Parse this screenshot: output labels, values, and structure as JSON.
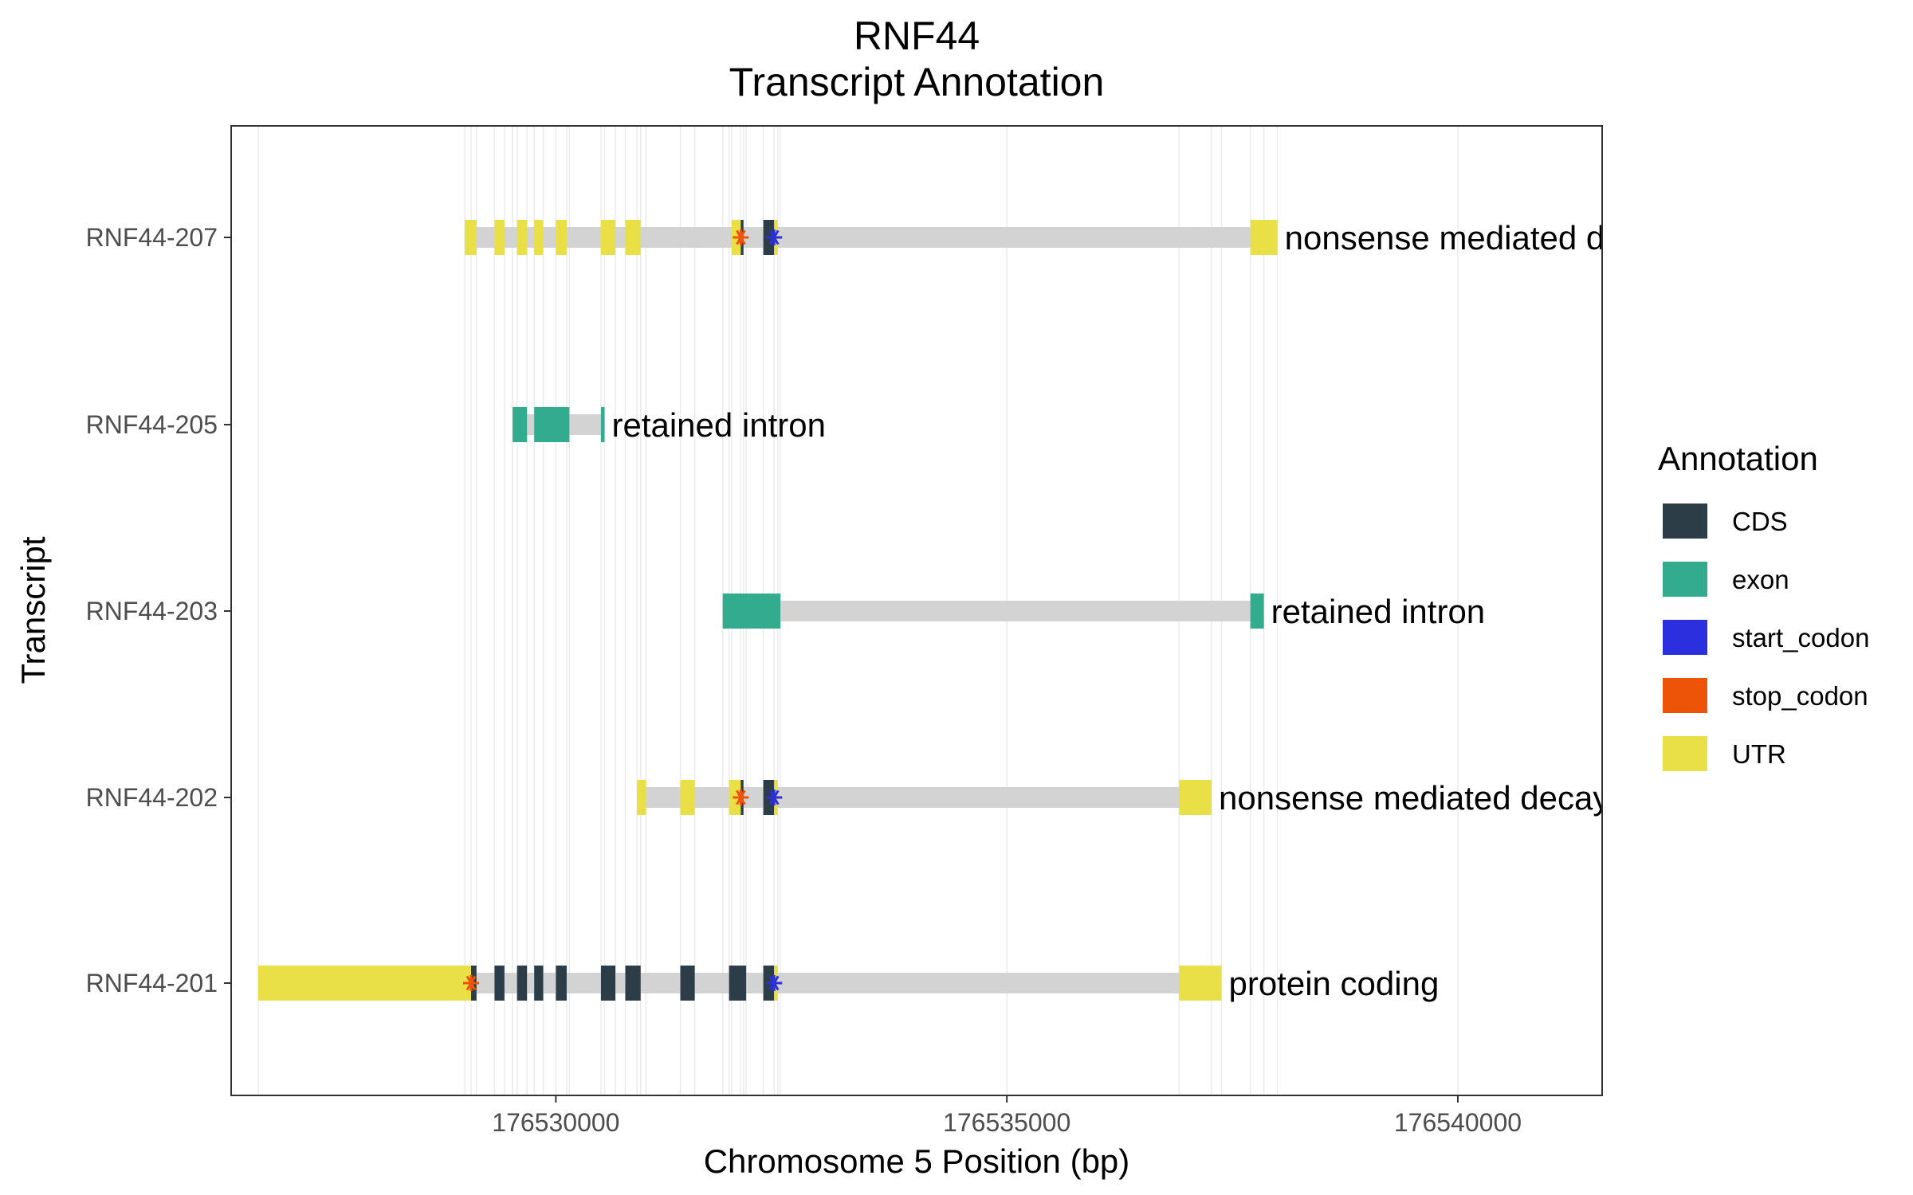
{
  "chart_data": {
    "type": "gene-structure",
    "title": "RNF44",
    "subtitle": "Transcript Annotation",
    "xlabel": "Chromosome 5 Position (bp)",
    "ylabel": "Transcript",
    "xlim": [
      176526400,
      176541600
    ],
    "x_ticks": [
      176530000,
      176535000,
      176540000
    ],
    "x_tick_labels": [
      "176530000",
      "176535000",
      "176540000"
    ],
    "grid": true,
    "legend": {
      "title": "Annotation",
      "position": "right",
      "entries": [
        {
          "label": "CDS",
          "color": "#2d3d48"
        },
        {
          "label": "exon",
          "color": "#33ab8f"
        },
        {
          "label": "start_codon",
          "color": "#2b2fdd"
        },
        {
          "label": "stop_codon",
          "color": "#ee5408"
        },
        {
          "label": "UTR",
          "color": "#e8e046"
        }
      ]
    },
    "colors": {
      "CDS": "#2d3d48",
      "exon": "#33ab8f",
      "UTR": "#e8e046",
      "start_codon": "#2b2fdd",
      "stop_codon": "#ee5408",
      "intron": "#d3d3d3",
      "grid": "#ebebeb"
    },
    "transcripts": [
      {
        "name": "RNF44-207",
        "biotype": "nonsense mediated decay",
        "start": 176528990,
        "end": 176538000,
        "features": [
          {
            "type": "UTR",
            "start": 176528990,
            "end": 176529120
          },
          {
            "type": "UTR",
            "start": 176529320,
            "end": 176529430
          },
          {
            "type": "UTR",
            "start": 176529570,
            "end": 176529680
          },
          {
            "type": "UTR",
            "start": 176529760,
            "end": 176529860
          },
          {
            "type": "UTR",
            "start": 176530000,
            "end": 176530120
          },
          {
            "type": "UTR",
            "start": 176530500,
            "end": 176530660
          },
          {
            "type": "UTR",
            "start": 176530770,
            "end": 176530940
          },
          {
            "type": "UTR",
            "start": 176531950,
            "end": 176532050
          },
          {
            "type": "CDS",
            "start": 176532050,
            "end": 176532080
          },
          {
            "type": "CDS",
            "start": 176532300,
            "end": 176532420
          },
          {
            "type": "UTR",
            "start": 176532420,
            "end": 176532460
          },
          {
            "type": "UTR",
            "start": 176537700,
            "end": 176538000
          }
        ],
        "stop_codon": 176532050,
        "start_codon": 176532420
      },
      {
        "name": "RNF44-205",
        "biotype": "retained intron",
        "start": 176529520,
        "end": 176530540,
        "features": [
          {
            "type": "exon",
            "start": 176529520,
            "end": 176529680
          },
          {
            "type": "exon",
            "start": 176529760,
            "end": 176530150
          },
          {
            "type": "exon",
            "start": 176530500,
            "end": 176530540
          }
        ]
      },
      {
        "name": "RNF44-203",
        "biotype": "retained intron",
        "start": 176531850,
        "end": 176537850,
        "features": [
          {
            "type": "exon",
            "start": 176531850,
            "end": 176532490
          },
          {
            "type": "exon",
            "start": 176537700,
            "end": 176537850
          }
        ]
      },
      {
        "name": "RNF44-202",
        "biotype": "nonsense mediated decay",
        "start": 176530900,
        "end": 176537270,
        "features": [
          {
            "type": "UTR",
            "start": 176530900,
            "end": 176531000
          },
          {
            "type": "UTR",
            "start": 176531380,
            "end": 176531540
          },
          {
            "type": "UTR",
            "start": 176531920,
            "end": 176532050
          },
          {
            "type": "CDS",
            "start": 176532050,
            "end": 176532080
          },
          {
            "type": "CDS",
            "start": 176532300,
            "end": 176532420
          },
          {
            "type": "UTR",
            "start": 176532420,
            "end": 176532460
          },
          {
            "type": "UTR",
            "start": 176536910,
            "end": 176537270
          }
        ],
        "stop_codon": 176532050,
        "start_codon": 176532420
      },
      {
        "name": "RNF44-201",
        "biotype": "protein coding",
        "start": 176526700,
        "end": 176537380,
        "features": [
          {
            "type": "UTR",
            "start": 176526700,
            "end": 176529060
          },
          {
            "type": "CDS",
            "start": 176529060,
            "end": 176529120
          },
          {
            "type": "CDS",
            "start": 176529320,
            "end": 176529430
          },
          {
            "type": "CDS",
            "start": 176529570,
            "end": 176529680
          },
          {
            "type": "CDS",
            "start": 176529760,
            "end": 176529860
          },
          {
            "type": "CDS",
            "start": 176530000,
            "end": 176530120
          },
          {
            "type": "CDS",
            "start": 176530500,
            "end": 176530660
          },
          {
            "type": "CDS",
            "start": 176530770,
            "end": 176530940
          },
          {
            "type": "CDS",
            "start": 176531380,
            "end": 176531540
          },
          {
            "type": "CDS",
            "start": 176531920,
            "end": 176532110
          },
          {
            "type": "CDS",
            "start": 176532300,
            "end": 176532420
          },
          {
            "type": "UTR",
            "start": 176532420,
            "end": 176532460
          },
          {
            "type": "UTR",
            "start": 176536910,
            "end": 176537380
          }
        ],
        "stop_codon": 176529060,
        "start_codon": 176532420
      }
    ]
  }
}
